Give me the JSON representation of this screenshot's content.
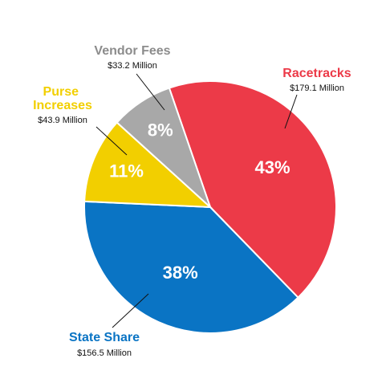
{
  "chart_data": {
    "type": "pie",
    "categories": [
      "Racetracks",
      "State Share",
      "Purse Increases",
      "Vendor Fees"
    ],
    "values": [
      43,
      38,
      11,
      8
    ],
    "value_labels": [
      "43%",
      "38%",
      "11%",
      "8%"
    ],
    "amount_labels": [
      "$179.1 Million",
      "$156.5 Million",
      "$43.9 Million",
      "$33.2 Million"
    ],
    "colors": [
      "#ec3a48",
      "#0a74c4",
      "#f2cf00",
      "#a8a8a8"
    ],
    "label_colors": [
      "#ec3a48",
      "#0a74c4",
      "#f2cf00",
      "#8c8c8c"
    ]
  }
}
